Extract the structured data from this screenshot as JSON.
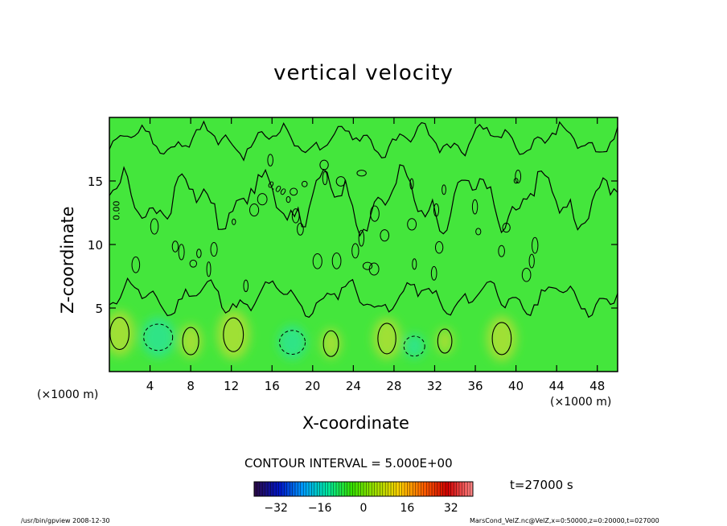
{
  "chart_data": {
    "type": "heatmap",
    "title": "vertical velocity",
    "xlabel": "X-coordinate",
    "ylabel": "Z-coordinate",
    "x_unit_label": "(×1000 m)",
    "xlim": [
      0,
      50
    ],
    "ylim": [
      0,
      20
    ],
    "x_ticks": [
      4,
      8,
      12,
      16,
      20,
      24,
      28,
      32,
      36,
      40,
      44,
      48
    ],
    "y_ticks": [
      5,
      10,
      15
    ],
    "contour_interval_label": "CONTOUR INTERVAL = 5.000E+00",
    "zero_contour_labels": [
      "0.00",
      "0.00"
    ],
    "colorbar": {
      "range": [
        -40,
        40
      ],
      "ticks": [
        -32,
        -16,
        0,
        16,
        32
      ],
      "colors": [
        "#2a0a4a",
        "#0015c8",
        "#00a0ff",
        "#00e8a0",
        "#35e000",
        "#a0e000",
        "#ffd000",
        "#ff6000",
        "#d00000",
        "#ff8080"
      ]
    },
    "field_colors": {
      "background": "#44e63c",
      "updraft": "#a8e034",
      "downdraft": "#2ce48e"
    },
    "updraft_cores": [
      {
        "x": 1.0,
        "z": 3.0,
        "w": 8
      },
      {
        "x": 12.2,
        "z": 2.9,
        "w": 9
      },
      {
        "x": 27.3,
        "z": 2.6,
        "w": 7
      },
      {
        "x": 38.6,
        "z": 2.6,
        "w": 8
      },
      {
        "x": 8.0,
        "z": 2.4,
        "w": 5
      },
      {
        "x": 21.8,
        "z": 2.2,
        "w": 4
      },
      {
        "x": 33.0,
        "z": 2.4,
        "w": 3
      }
    ],
    "downdraft_cores": [
      {
        "x": 4.8,
        "z": 2.7,
        "w": -8
      },
      {
        "x": 18.0,
        "z": 2.3,
        "w": -6
      },
      {
        "x": 30.0,
        "z": 2.0,
        "w": -3
      }
    ],
    "time_label": "t=27000 s"
  },
  "footer": {
    "left": "/usr/bin/gpview   2008-12-30",
    "right": "MarsCond_VelZ.nc@VelZ,x=0:50000,z=0:20000,t=027000"
  }
}
